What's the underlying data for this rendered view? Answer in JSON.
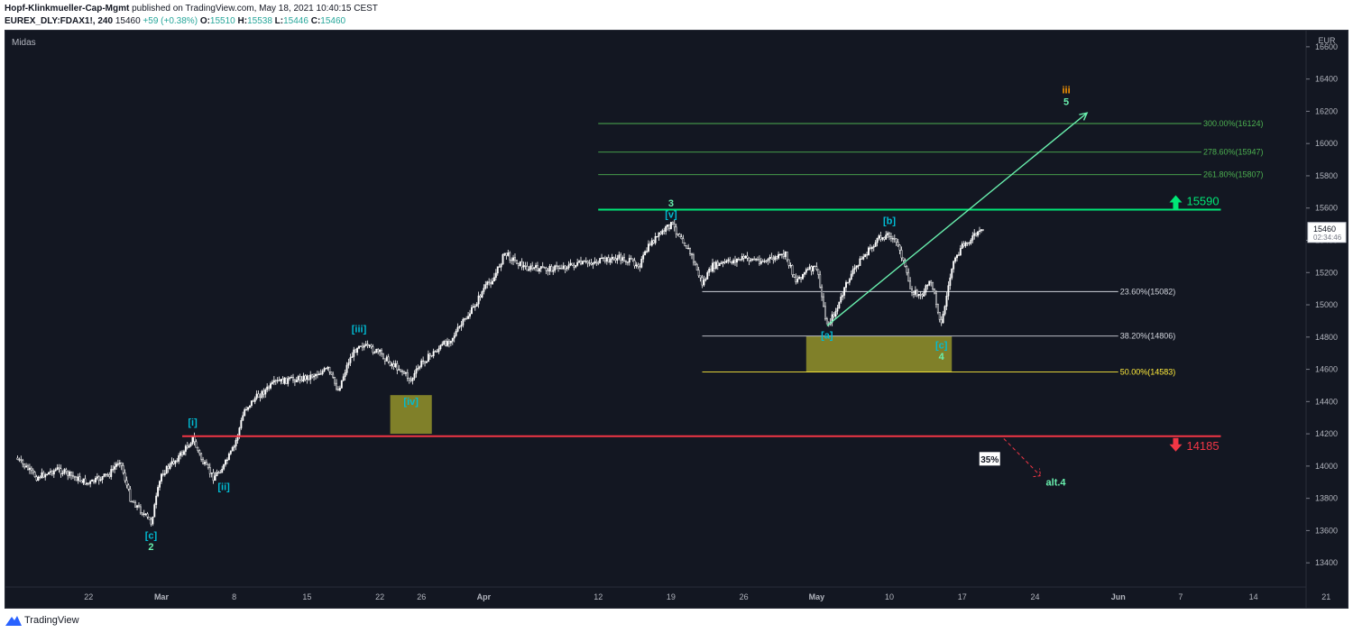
{
  "header": {
    "publisher": "Hopf-Klinkmueller-Cap-Mgmt",
    "published_text": "published on TradingView.com, May 18, 2021 10:40:15 CEST",
    "symbol": "EUREX_DLY:FDAX1!, 240",
    "last": "15460",
    "change": "+59 (+0.38%)",
    "o_label": "O:",
    "o_value": "15510",
    "h_label": "H:",
    "h_value": "15538",
    "l_label": "L:",
    "l_value": "15446",
    "c_label": "C:",
    "c_value": "15460"
  },
  "indicator_label": "Midas",
  "footer": {
    "brand": "TradingView"
  },
  "colors": {
    "background": "#131722",
    "candle": "#ffffff",
    "fib_upper": "#4caf50",
    "fib_white": "#d1d4dc",
    "fib_yellow": "#ffeb3b",
    "resistance": "#00e676",
    "support": "#f23645",
    "wave_cyan": "#00bcd4",
    "wave_green": "#69f0ae",
    "wave_orange": "#ff9800",
    "box_fill": "#8d8c2a"
  },
  "chart_data": {
    "type": "candlestick",
    "timeframe": "240",
    "price_scale_unit": "EUR",
    "ylim": [
      13250,
      16700
    ],
    "y_ticks": [
      13400,
      13600,
      13800,
      14000,
      14200,
      14400,
      14600,
      14800,
      15000,
      15200,
      15400,
      15600,
      15800,
      16000,
      16200,
      16400,
      16600
    ],
    "x_ticks": [
      {
        "label": "22",
        "date": "2021-02-22"
      },
      {
        "label": "Mar",
        "date": "2021-03-01"
      },
      {
        "label": "8",
        "date": "2021-03-08"
      },
      {
        "label": "15",
        "date": "2021-03-15"
      },
      {
        "label": "22",
        "date": "2021-03-22"
      },
      {
        "label": "26",
        "date": "2021-03-26"
      },
      {
        "label": "Apr",
        "date": "2021-04-01"
      },
      {
        "label": "12",
        "date": "2021-04-12"
      },
      {
        "label": "19",
        "date": "2021-04-19"
      },
      {
        "label": "26",
        "date": "2021-04-26"
      },
      {
        "label": "May",
        "date": "2021-05-03"
      },
      {
        "label": "10",
        "date": "2021-05-10"
      },
      {
        "label": "17",
        "date": "2021-05-17"
      },
      {
        "label": "24",
        "date": "2021-05-24"
      },
      {
        "label": "Jun",
        "date": "2021-06-01"
      },
      {
        "label": "7",
        "date": "2021-06-07"
      },
      {
        "label": "14",
        "date": "2021-06-14"
      },
      {
        "label": "21",
        "date": "2021-06-21"
      }
    ],
    "price_path": [
      {
        "date": "2021-02-15",
        "price": 14050
      },
      {
        "date": "2021-02-17",
        "price": 13930
      },
      {
        "date": "2021-02-19",
        "price": 13980
      },
      {
        "date": "2021-02-22",
        "price": 13890
      },
      {
        "date": "2021-02-24",
        "price": 13950
      },
      {
        "date": "2021-02-25",
        "price": 14040
      },
      {
        "date": "2021-02-26",
        "price": 13800
      },
      {
        "date": "2021-02-28",
        "price": 13650
      },
      {
        "date": "2021-03-01",
        "price": 13950
      },
      {
        "date": "2021-03-03",
        "price": 14080
      },
      {
        "date": "2021-03-04",
        "price": 14170
      },
      {
        "date": "2021-03-05",
        "price": 14020
      },
      {
        "date": "2021-03-06",
        "price": 13930
      },
      {
        "date": "2021-03-07",
        "price": 14000
      },
      {
        "date": "2021-03-08",
        "price": 14120
      },
      {
        "date": "2021-03-09",
        "price": 14350
      },
      {
        "date": "2021-03-10",
        "price": 14420
      },
      {
        "date": "2021-03-12",
        "price": 14520
      },
      {
        "date": "2021-03-15",
        "price": 14550
      },
      {
        "date": "2021-03-17",
        "price": 14600
      },
      {
        "date": "2021-03-18",
        "price": 14470
      },
      {
        "date": "2021-03-19",
        "price": 14650
      },
      {
        "date": "2021-03-20",
        "price": 14760
      },
      {
        "date": "2021-03-22",
        "price": 14700
      },
      {
        "date": "2021-03-23",
        "price": 14640
      },
      {
        "date": "2021-03-24",
        "price": 14600
      },
      {
        "date": "2021-03-25",
        "price": 14530
      },
      {
        "date": "2021-03-26",
        "price": 14640
      },
      {
        "date": "2021-03-29",
        "price": 14800
      },
      {
        "date": "2021-03-31",
        "price": 14980
      },
      {
        "date": "2021-04-01",
        "price": 15100
      },
      {
        "date": "2021-04-02",
        "price": 15170
      },
      {
        "date": "2021-04-03",
        "price": 15320
      },
      {
        "date": "2021-04-05",
        "price": 15230
      },
      {
        "date": "2021-04-07",
        "price": 15220
      },
      {
        "date": "2021-04-09",
        "price": 15240
      },
      {
        "date": "2021-04-12",
        "price": 15270
      },
      {
        "date": "2021-04-14",
        "price": 15290
      },
      {
        "date": "2021-04-16",
        "price": 15250
      },
      {
        "date": "2021-04-17",
        "price": 15380
      },
      {
        "date": "2021-04-19",
        "price": 15500
      },
      {
        "date": "2021-04-20",
        "price": 15420
      },
      {
        "date": "2021-04-21",
        "price": 15300
      },
      {
        "date": "2021-04-22",
        "price": 15130
      },
      {
        "date": "2021-04-23",
        "price": 15240
      },
      {
        "date": "2021-04-26",
        "price": 15290
      },
      {
        "date": "2021-04-28",
        "price": 15270
      },
      {
        "date": "2021-04-30",
        "price": 15310
      },
      {
        "date": "2021-05-01",
        "price": 15150
      },
      {
        "date": "2021-05-02",
        "price": 15210
      },
      {
        "date": "2021-05-03",
        "price": 15230
      },
      {
        "date": "2021-05-04",
        "price": 14870
      },
      {
        "date": "2021-05-05",
        "price": 14980
      },
      {
        "date": "2021-05-06",
        "price": 15150
      },
      {
        "date": "2021-05-07",
        "price": 15260
      },
      {
        "date": "2021-05-09",
        "price": 15410
      },
      {
        "date": "2021-05-10",
        "price": 15440
      },
      {
        "date": "2021-05-11",
        "price": 15350
      },
      {
        "date": "2021-05-12",
        "price": 15100
      },
      {
        "date": "2021-05-13",
        "price": 15050
      },
      {
        "date": "2021-05-14",
        "price": 15150
      },
      {
        "date": "2021-05-15",
        "price": 14880
      },
      {
        "date": "2021-05-16",
        "price": 15230
      },
      {
        "date": "2021-05-17",
        "price": 15360
      },
      {
        "date": "2021-05-18",
        "price": 15420
      },
      {
        "date": "2021-05-19",
        "price": 15460
      }
    ],
    "fib_levels": [
      {
        "label": "23.60%(15082)",
        "price": 15082,
        "color": "white"
      },
      {
        "label": "38.20%(14806)",
        "price": 14806,
        "color": "white"
      },
      {
        "label": "50.00%(14583)",
        "price": 14583,
        "color": "yellow"
      },
      {
        "label": "261.80%(15807)",
        "price": 15807,
        "color": "green"
      },
      {
        "label": "278.60%(15947)",
        "price": 15947,
        "color": "green"
      },
      {
        "label": "300.00%(16124)",
        "price": 16124,
        "color": "green"
      }
    ],
    "horizontal_levels": [
      {
        "label": "15590",
        "price": 15590,
        "direction": "up"
      },
      {
        "label": "14185",
        "price": 14185,
        "direction": "down"
      }
    ],
    "wave_labels": [
      {
        "text": "[c]",
        "date": "2021-02-28",
        "price": 13550,
        "color": "cyan"
      },
      {
        "text": "2",
        "date": "2021-02-28",
        "price": 13480,
        "color": "green"
      },
      {
        "text": "[i]",
        "date": "2021-03-04",
        "price": 14250,
        "color": "cyan"
      },
      {
        "text": "[ii]",
        "date": "2021-03-07",
        "price": 13850,
        "color": "cyan"
      },
      {
        "text": "[iii]",
        "date": "2021-03-20",
        "price": 14830,
        "color": "cyan"
      },
      {
        "text": "[iv]",
        "date": "2021-03-25",
        "price": 14380,
        "color": "cyan"
      },
      {
        "text": "3",
        "date": "2021-04-19",
        "price": 15610,
        "color": "green"
      },
      {
        "text": "[v]",
        "date": "2021-04-19",
        "price": 15540,
        "color": "cyan"
      },
      {
        "text": "[a]",
        "date": "2021-05-04",
        "price": 14790,
        "color": "cyan"
      },
      {
        "text": "[b]",
        "date": "2021-05-10",
        "price": 15500,
        "color": "cyan"
      },
      {
        "text": "[c]",
        "date": "2021-05-15",
        "price": 14730,
        "color": "cyan"
      },
      {
        "text": "4",
        "date": "2021-05-15",
        "price": 14660,
        "color": "green"
      },
      {
        "text": "iii",
        "date": "2021-05-27",
        "price": 16310,
        "color": "orange"
      },
      {
        "text": "5",
        "date": "2021-05-27",
        "price": 16240,
        "color": "green"
      },
      {
        "text": "alt.4",
        "date": "2021-05-26",
        "price": 13880,
        "color": "green"
      }
    ],
    "probability_label": "35%",
    "last_price": "15460",
    "countdown": "02:34:46"
  }
}
